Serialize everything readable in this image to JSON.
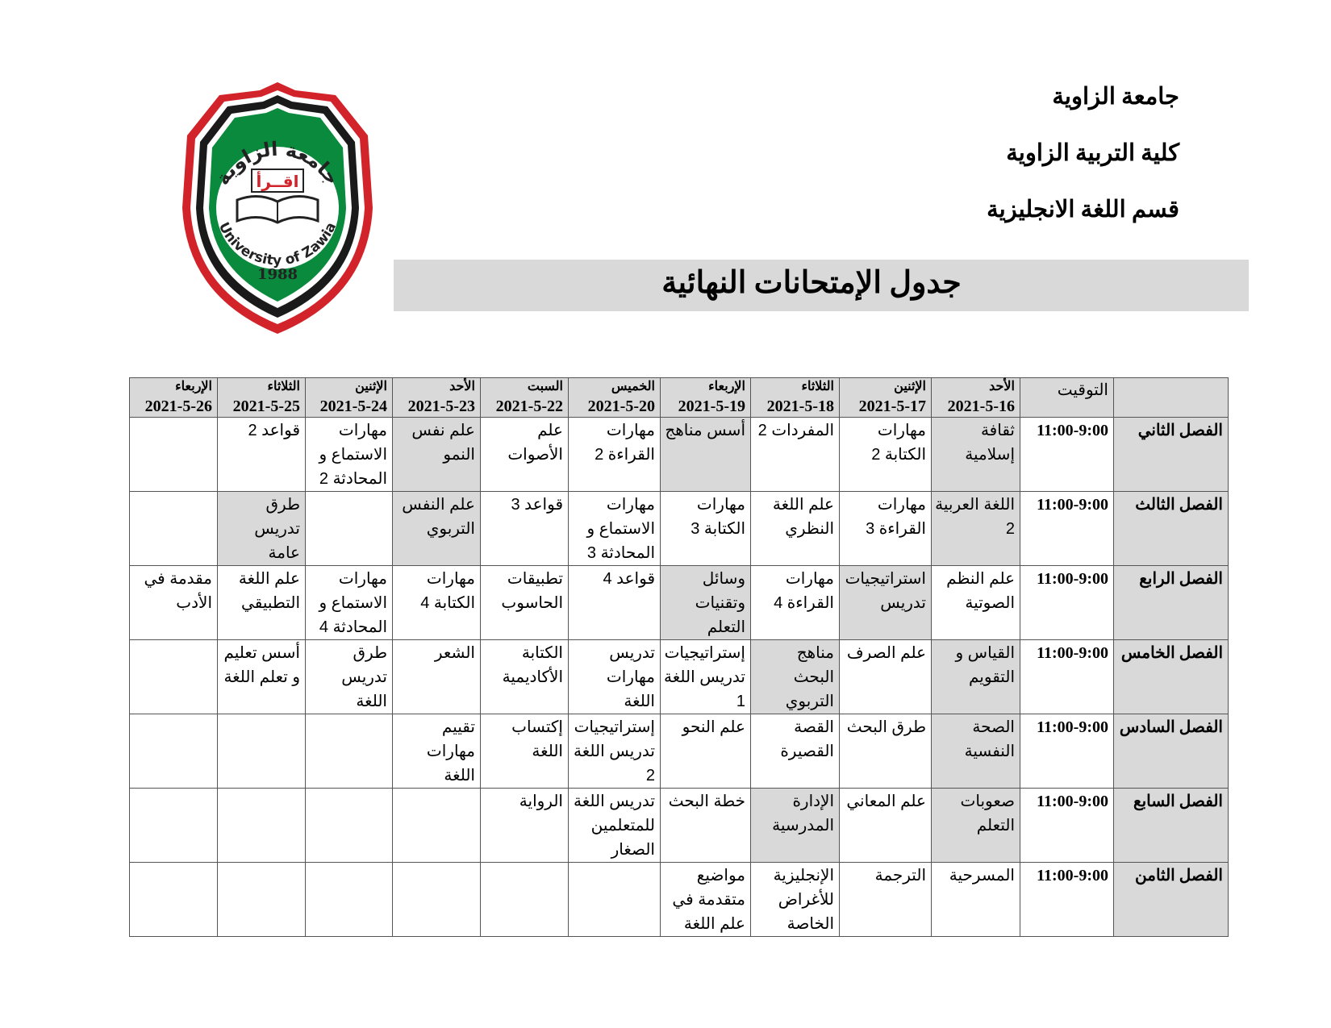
{
  "header": {
    "university": "جامعة الزاوية",
    "faculty": "كلية التربية الزاوية",
    "department": "قسم اللغة الانجليزية",
    "title": "جدول الإمتحانات النهائية"
  },
  "logo": {
    "arabic_name": "جامعة الزاوية",
    "motto": "اقــرأ",
    "english_name": "University of Zawia",
    "year": "1988",
    "colors": {
      "red": "#d2232a",
      "black": "#1a1a1a",
      "green": "#0a8a3c"
    }
  },
  "table": {
    "time_header": "التوقيت",
    "days": [
      {
        "day": "الأحد",
        "date": "2021-5-16"
      },
      {
        "day": "الإثنين",
        "date": "2021-5-17"
      },
      {
        "day": "الثلاثاء",
        "date": "2021-5-18"
      },
      {
        "day": "الإربعاء",
        "date": "2021-5-19"
      },
      {
        "day": "الخميس",
        "date": "2021-5-20"
      },
      {
        "day": "السبت",
        "date": "2021-5-22"
      },
      {
        "day": "الأحد",
        "date": "2021-5-23"
      },
      {
        "day": "الإثنين",
        "date": "2021-5-24"
      },
      {
        "day": "الثلاثاء",
        "date": "2021-5-25"
      },
      {
        "day": "الإربعاء",
        "date": "2021-5-26"
      }
    ],
    "rows": [
      {
        "semester": "الفصل الثاني",
        "time": "11:00-9:00",
        "cells": [
          "ثقافة إسلامية",
          "مهارات الكتابة 2",
          "المفردات 2",
          "أسس مناهج",
          "مهارات القراءة 2",
          "علم الأصوات",
          "علم نفس النمو",
          "مهارات الاستماع و المحادثة 2",
          "قواعد 2",
          ""
        ]
      },
      {
        "semester": "الفصل الثالث",
        "time": "11:00-9:00",
        "cells": [
          "اللغة العربية 2",
          "مهارات القراءة 3",
          "علم اللغة النظري",
          "مهارات الكتابة 3",
          "مهارات الاستماع و المحادثة 3",
          "قواعد 3",
          "علم النفس التربوي",
          "",
          "طرق تدريس عامة",
          ""
        ]
      },
      {
        "semester": "الفصل الرابع",
        "time": "11:00-9:00",
        "cells": [
          "علم النظم الصوتية",
          "استراتيجيات تدريس",
          "مهارات القراءة 4",
          "وسائل وتقنيات التعلم",
          "قواعد 4",
          "تطبيقات الحاسوب",
          "مهارات الكتابة 4",
          "مهارات الاستماع و المحادثة 4",
          "علم اللغة التطبيقي",
          "مقدمة في الأدب"
        ]
      },
      {
        "semester": "الفصل الخامس",
        "time": "11:00-9:00",
        "cells": [
          "القياس و التقويم",
          "علم الصرف",
          "مناهج البحث التربوي",
          "إستراتيجيات تدريس اللغة 1",
          "تدريس مهارات اللغة",
          "الكتابة الأكاديمية",
          "الشعر",
          "طرق تدريس اللغة",
          "أسس تعليم و تعلم اللغة",
          ""
        ]
      },
      {
        "semester": "الفصل السادس",
        "time": "11:00-9:00",
        "cells": [
          "الصحة النفسية",
          "طرق البحث",
          "القصة القصيرة",
          "علم النحو",
          "إستراتيجيات تدريس اللغة 2",
          "إكتساب اللغة",
          "تقييم مهارات اللغة",
          "",
          "",
          ""
        ]
      },
      {
        "semester": "الفصل السابع",
        "time": "11:00-9:00",
        "cells": [
          "صعوبات التعلم",
          "علم المعاني",
          "الإدارة المدرسية",
          "خطة البحث",
          "تدريس اللغة للمتعلمين الصغار",
          "الرواية",
          "",
          "",
          "",
          ""
        ]
      },
      {
        "semester": "الفصل الثامن",
        "time": "11:00-9:00",
        "cells": [
          "المسرحية",
          "الترجمة",
          "الإنجليزية للأغراض الخاصة",
          "مواضيع متقدمة في علم اللغة",
          "",
          "",
          "",
          "",
          "",
          ""
        ]
      }
    ],
    "shaded_cells": [
      [
        0,
        0
      ],
      [
        0,
        3
      ],
      [
        0,
        6
      ],
      [
        1,
        0
      ],
      [
        1,
        6
      ],
      [
        1,
        8
      ],
      [
        2,
        1
      ],
      [
        2,
        3
      ],
      [
        3,
        0
      ],
      [
        3,
        2
      ],
      [
        4,
        0
      ],
      [
        5,
        0
      ],
      [
        5,
        2
      ]
    ],
    "shade_color": "#d9d9d9"
  }
}
